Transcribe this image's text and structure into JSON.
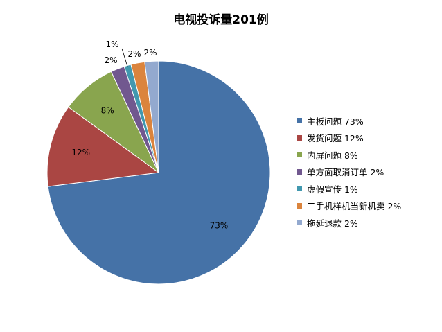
{
  "chart_data": {
    "type": "pie",
    "title": "电视投诉量201例",
    "categories": [
      "主板问题",
      "发货问题",
      "内屏问题",
      "单方面取消订单",
      "虚假宣传",
      "二手机样机当新机卖",
      "拖延退款"
    ],
    "values": [
      73,
      12,
      8,
      2,
      1,
      2,
      2
    ],
    "data_labels": [
      "73%",
      "12%",
      "8%",
      "2%",
      "1%",
      "2%",
      "2%"
    ],
    "legend_labels": [
      "主板问题 73%",
      "发货问题 12%",
      "内屏问题 8%",
      "单方面取消订单 2%",
      "虚假宣传 1%",
      "二手机样机当新机卖 2%",
      "拖延退款 2%"
    ],
    "colors": [
      "#4572A7",
      "#AA4643",
      "#89A54E",
      "#71588F",
      "#4198AF",
      "#DB843D",
      "#93A9CF"
    ],
    "legend_position": "right"
  }
}
